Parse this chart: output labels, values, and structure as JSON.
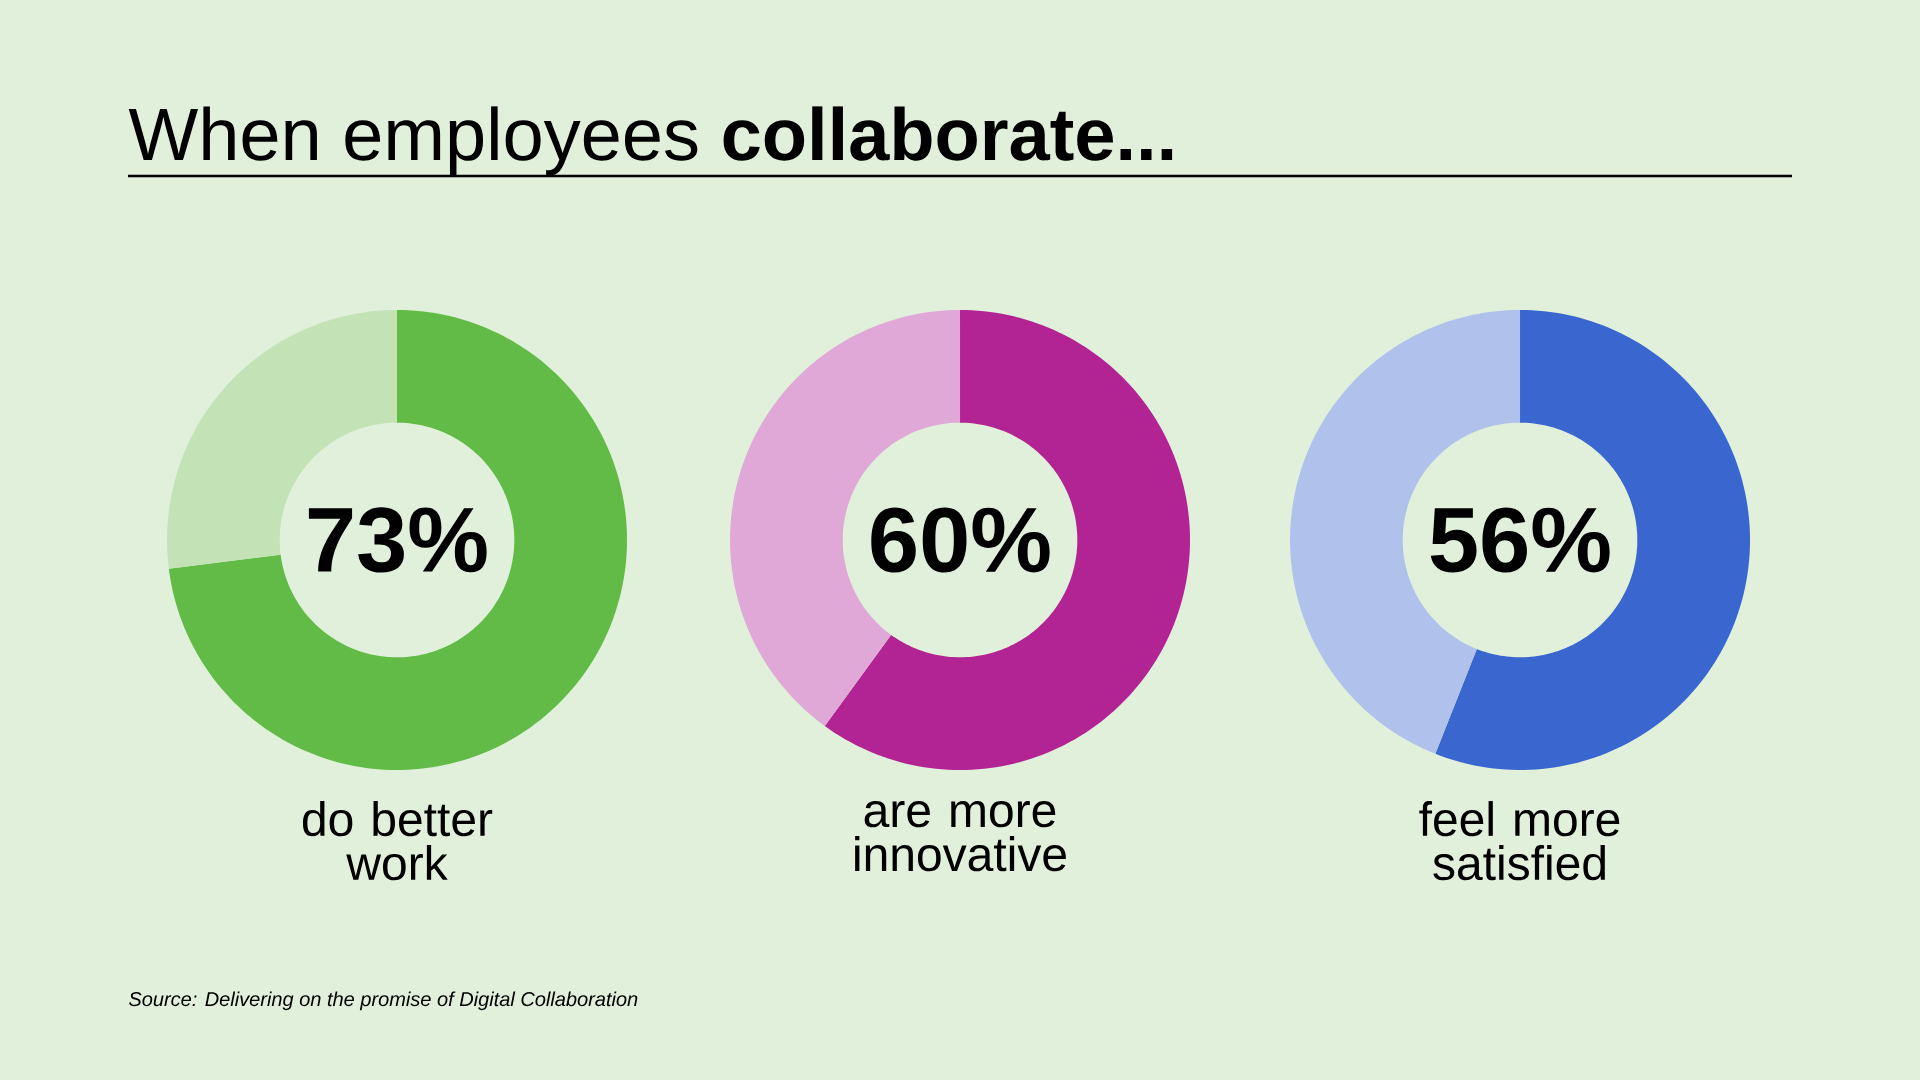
{
  "chart_data": [
    {
      "type": "donut",
      "title": "When employees **collaborate...**",
      "categories": [
        "do better work",
        null
      ],
      "values": [
        73,
        27
      ],
      "colors": [
        "#62bb47",
        "#c3e3b7"
      ],
      "value_labels": [
        "73%",
        null
      ]
    },
    {
      "type": "donut",
      "categories": [
        "are more innovative",
        null
      ],
      "values": [
        60,
        40
      ],
      "colors": [
        "#b22494",
        "#e0a8d7"
      ],
      "value_labels": [
        "60%",
        null
      ]
    },
    {
      "type": "donut",
      "categories": [
        "feel more satisfied",
        null
      ],
      "values": [
        56,
        44
      ],
      "colors": [
        "#3a66d0",
        "#b0c2ec"
      ],
      "value_labels": [
        "56%",
        null
      ],
      "annotations": [
        "Source: Delivering on the promise of Digital Collaboration"
      ]
    }
  ]
}
